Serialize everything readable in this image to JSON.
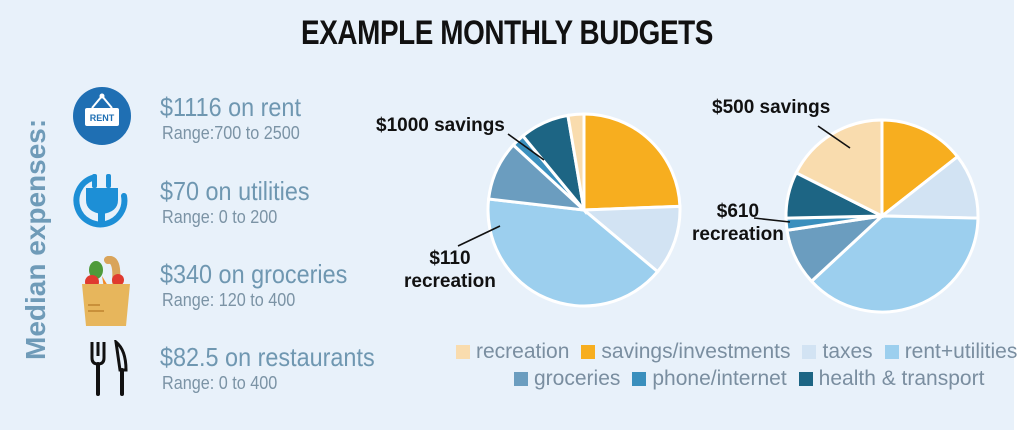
{
  "title": "EXAMPLE MONTHLY BUDGETS",
  "side_label": "Median expenses:",
  "expenses": [
    {
      "icon": "rent-sign-icon",
      "main": "$1116 on rent",
      "range": "Range:700 to 2500"
    },
    {
      "icon": "plug-icon",
      "main": "$70 on utilities",
      "range": "Range: 0 to 200"
    },
    {
      "icon": "grocery-bag-icon",
      "main": "$340 on groceries",
      "range": "Range: 120 to 400"
    },
    {
      "icon": "fork-knife-icon",
      "main": "$82.5 on restaurants",
      "range": "Range: 0 to 400"
    }
  ],
  "chart_data": [
    {
      "type": "pie",
      "categories": [
        "savings/investments",
        "taxes",
        "rent+utilities",
        "groceries",
        "phone/internet",
        "health & transport",
        "recreation"
      ],
      "values": [
        1000,
        480,
        1670,
        410,
        90,
        340,
        110
      ],
      "annotations": [
        {
          "text": "$1000 savings",
          "category": "savings/investments"
        },
        {
          "text": "$110 recreation",
          "category": "recreation"
        }
      ]
    },
    {
      "type": "pie",
      "categories": [
        "savings/investments",
        "taxes",
        "rent+utilities",
        "groceries",
        "phone/internet",
        "health & transport",
        "recreation"
      ],
      "values": [
        500,
        380,
        1310,
        330,
        70,
        270,
        610
      ],
      "annotations": [
        {
          "text": "$500 savings",
          "category": "savings/investments"
        },
        {
          "text": "$610 recreation",
          "category": "recreation"
        }
      ]
    }
  ],
  "annotations": {
    "pie1_savings": "$1000 savings",
    "pie1_recreation_amount": "$110",
    "pie1_recreation_word": "recreation",
    "pie2_savings": "$500 savings",
    "pie2_recreation_amount": "$610",
    "pie2_recreation_word": "recreation"
  },
  "legend": [
    {
      "label": "recreation",
      "color": "#f9dcae"
    },
    {
      "label": "savings/investments",
      "color": "#f7ae1f"
    },
    {
      "label": "taxes",
      "color": "#d2e3f3"
    },
    {
      "label": "rent+utilities",
      "color": "#9ccfee"
    },
    {
      "label": "groceries",
      "color": "#6b9dbf"
    },
    {
      "label": "phone/internet",
      "color": "#3a8fbd"
    },
    {
      "label": "health & transport",
      "color": "#1d6584"
    }
  ],
  "colors": {
    "savings/investments": "#f7ae1f",
    "taxes": "#d2e3f3",
    "rent+utilities": "#9ccfee",
    "groceries": "#6b9dbf",
    "phone/internet": "#3a8fbd",
    "health & transport": "#1d6584",
    "recreation": "#f9dcae",
    "icon_blue": "#1f6fb3",
    "plug_blue": "#1d8fd6"
  }
}
